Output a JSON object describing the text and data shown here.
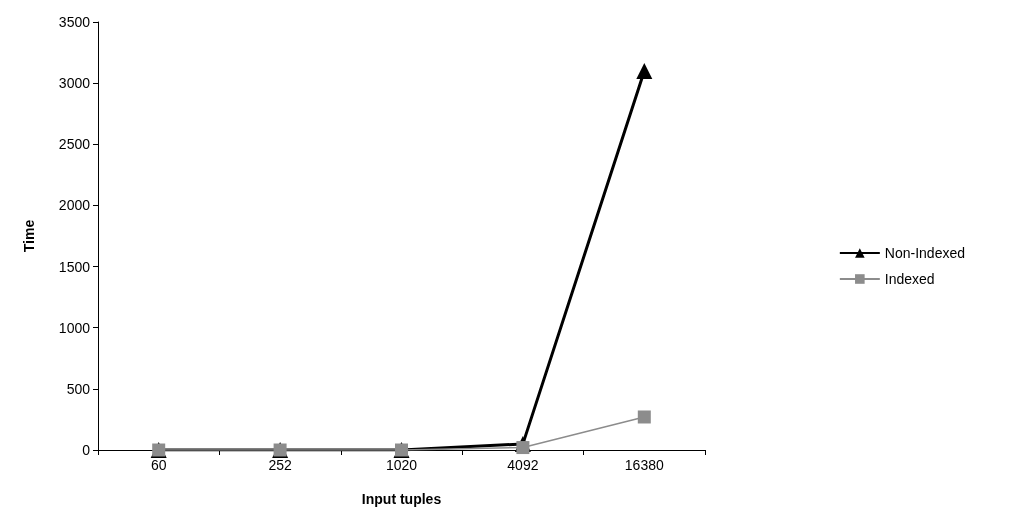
{
  "chart_data": {
    "type": "line",
    "xlabel": "Input tuples",
    "ylabel": "Time",
    "categories": [
      "60",
      "252",
      "1020",
      "4092",
      "16380"
    ],
    "series": [
      {
        "name": "Non-Indexed",
        "color": "#000000",
        "marker": "triangle",
        "values": [
          0,
          0,
          0,
          50,
          3100
        ]
      },
      {
        "name": "Indexed",
        "color": "#8c8c8c",
        "marker": "square",
        "values": [
          0,
          0,
          0,
          20,
          270
        ]
      }
    ],
    "ylim": [
      0,
      3500
    ],
    "yticks": [
      0,
      500,
      1000,
      1500,
      2000,
      2500,
      3000,
      3500
    ],
    "grid": false,
    "legend": "right"
  }
}
